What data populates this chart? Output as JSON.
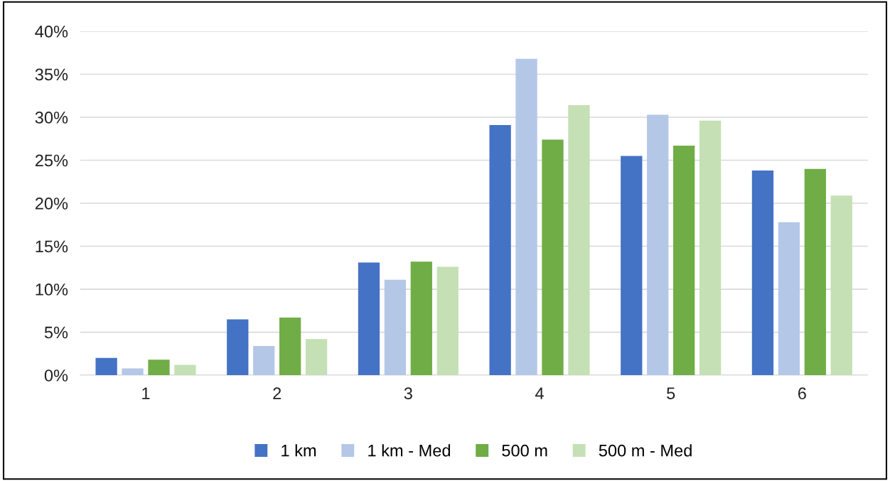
{
  "chart_data": {
    "type": "bar",
    "categories": [
      "1",
      "2",
      "3",
      "4",
      "5",
      "6"
    ],
    "series": [
      {
        "name": "1 km",
        "color": "#4472c4",
        "values": [
          2.0,
          6.5,
          13.1,
          29.1,
          25.5,
          23.8
        ]
      },
      {
        "name": "1 km - Med",
        "color": "#b4c7e7",
        "values": [
          0.8,
          3.4,
          11.1,
          36.8,
          30.3,
          17.8
        ]
      },
      {
        "name": "500 m",
        "color": "#70ad47",
        "values": [
          1.8,
          6.7,
          13.2,
          27.4,
          26.7,
          24.0
        ]
      },
      {
        "name": "500 m - Med",
        "color": "#c5e0b4",
        "values": [
          1.2,
          4.2,
          12.6,
          31.4,
          29.6,
          20.9
        ]
      }
    ],
    "ylim": [
      0,
      40
    ],
    "yticks": [
      {
        "value": 0,
        "label": "0%"
      },
      {
        "value": 5,
        "label": "5%"
      },
      {
        "value": 10,
        "label": "10%"
      },
      {
        "value": 15,
        "label": "15%"
      },
      {
        "value": 20,
        "label": "20%"
      },
      {
        "value": 25,
        "label": "25%"
      },
      {
        "value": 30,
        "label": "30%"
      },
      {
        "value": 35,
        "label": "35%"
      },
      {
        "value": 40,
        "label": "40%"
      }
    ],
    "grid": "y",
    "legend": "bottom"
  }
}
